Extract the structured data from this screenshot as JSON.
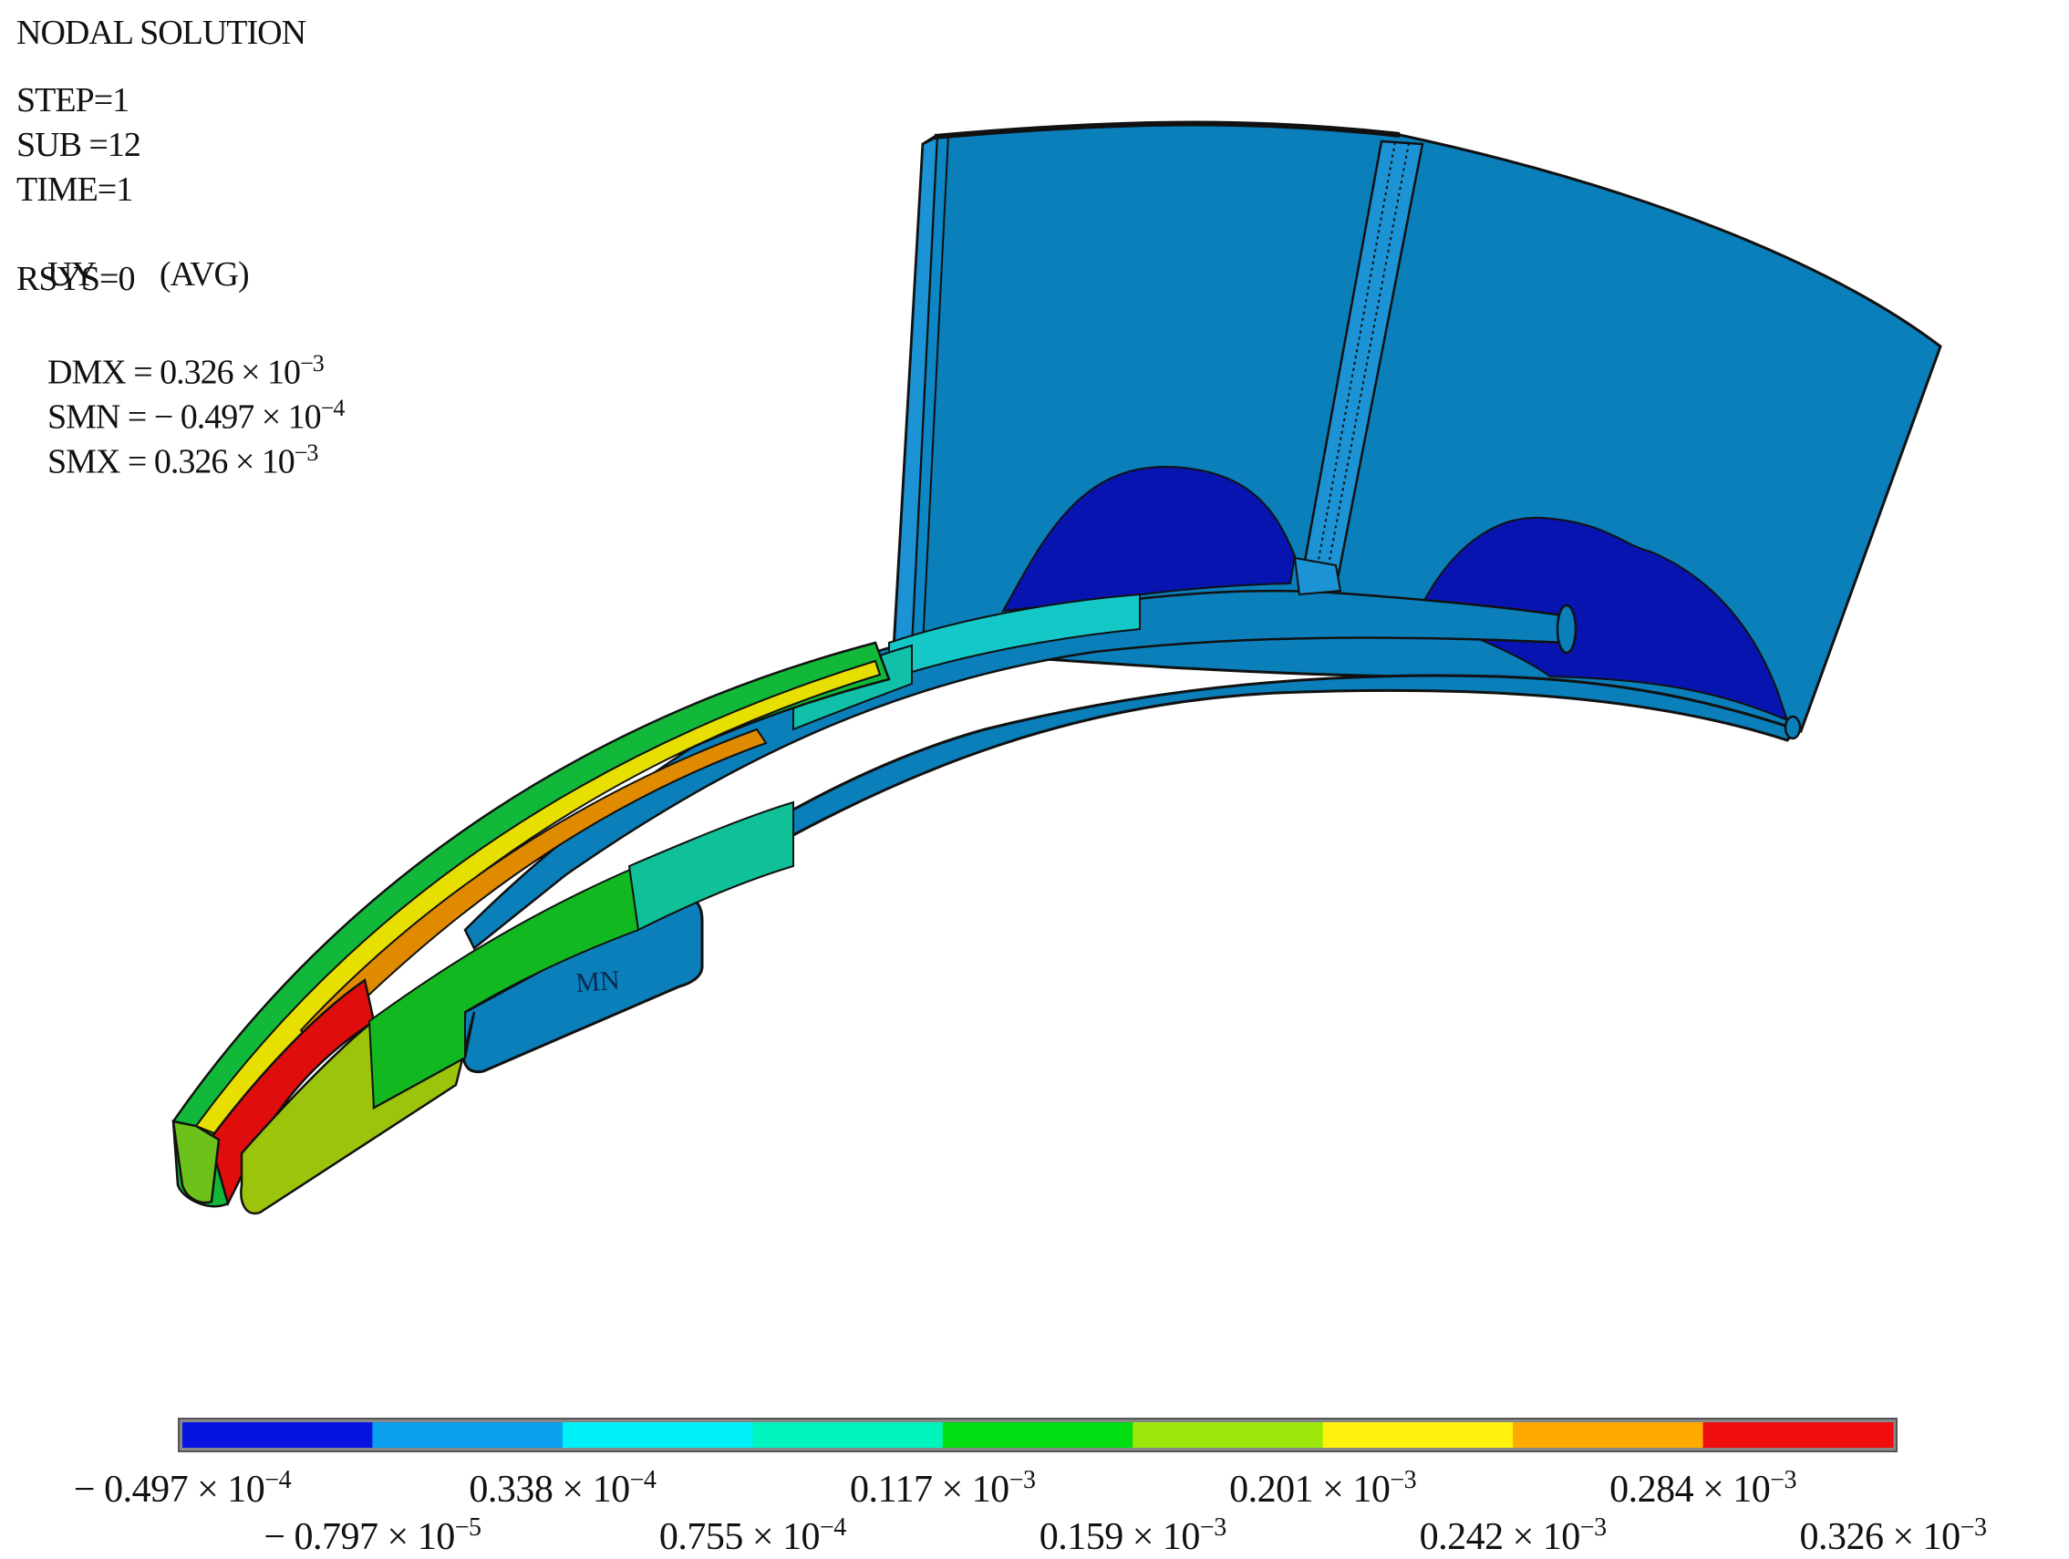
{
  "header": {
    "title": "NODAL SOLUTION",
    "lines": [
      {
        "key": "STEP=1",
        "value": ""
      },
      {
        "key": "SUB =12",
        "value": ""
      },
      {
        "key": "TIME=1",
        "value": ""
      },
      {
        "key": "UY",
        "value": "(AVG)"
      },
      {
        "key": "RSYS=0",
        "value": ""
      }
    ],
    "sci_lines": [
      {
        "key": "DMX",
        "sign": "",
        "mantissa": "0.326",
        "exponent": "−3"
      },
      {
        "key": "SMN",
        "sign": "− ",
        "mantissa": "0.497",
        "exponent": "−4"
      },
      {
        "key": "SMX",
        "sign": "",
        "mantissa": "0.326",
        "exponent": "−3"
      }
    ]
  },
  "model_marker": "MN",
  "colors": {
    "plate": "#0a7fba",
    "plate_light": "#1b93d4",
    "deep_blue": "#0714b0",
    "outline": "#111111"
  },
  "legend": {
    "colors": [
      "#0714e0",
      "#0a9fee",
      "#00f0f8",
      "#00f5be",
      "#00dd10",
      "#9be80a",
      "#fff30d",
      "#ffaa00",
      "#f00d0d"
    ],
    "row1": [
      {
        "sign": "− ",
        "mantissa": "0.497",
        "exponent": "−4"
      },
      {
        "sign": "",
        "mantissa": "0.338",
        "exponent": "−4"
      },
      {
        "sign": "",
        "mantissa": "0.117",
        "exponent": "−3"
      },
      {
        "sign": "",
        "mantissa": "0.201",
        "exponent": "−3"
      },
      {
        "sign": "",
        "mantissa": "0.284",
        "exponent": "−3"
      }
    ],
    "row2": [
      {
        "sign": "− ",
        "mantissa": "0.797",
        "exponent": "−5"
      },
      {
        "sign": "",
        "mantissa": "0.755",
        "exponent": "−4"
      },
      {
        "sign": "",
        "mantissa": "0.159",
        "exponent": "−3"
      },
      {
        "sign": "",
        "mantissa": "0.242",
        "exponent": "−3"
      },
      {
        "sign": "",
        "mantissa": "0.326",
        "exponent": "−3"
      }
    ]
  }
}
